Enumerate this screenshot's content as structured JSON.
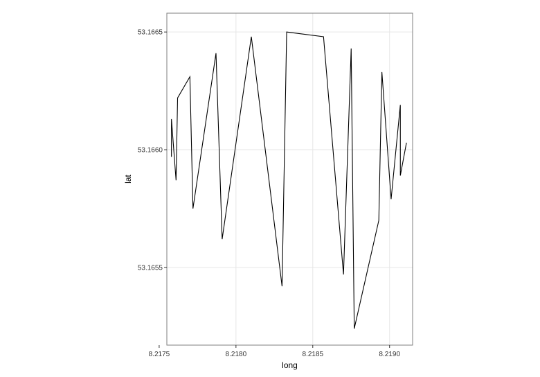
{
  "chart_data": {
    "type": "line",
    "title": "",
    "xlabel": "long",
    "ylabel": "lat",
    "xlim": [
      8.21755,
      8.21915
    ],
    "ylim": [
      53.16517,
      53.16658
    ],
    "grid": true,
    "x_ticks": [
      {
        "value": 8.2175,
        "label": "8.2175"
      },
      {
        "value": 8.218,
        "label": "8.2180"
      },
      {
        "value": 8.2185,
        "label": "8.2185"
      },
      {
        "value": 8.219,
        "label": "8.2190"
      }
    ],
    "y_ticks": [
      {
        "value": 53.1655,
        "label": "53.1655"
      },
      {
        "value": 53.166,
        "label": "53.1660"
      },
      {
        "value": 53.1665,
        "label": "53.1665"
      }
    ],
    "series": [
      {
        "points": [
          {
            "x": 8.21758,
            "y": 53.16597
          },
          {
            "x": 8.21758,
            "y": 53.16613
          },
          {
            "x": 8.21761,
            "y": 53.16587
          },
          {
            "x": 8.21762,
            "y": 53.16622
          },
          {
            "x": 8.2177,
            "y": 53.16631
          },
          {
            "x": 8.21772,
            "y": 53.16575
          },
          {
            "x": 8.21787,
            "y": 53.16641
          },
          {
            "x": 8.21791,
            "y": 53.16562
          },
          {
            "x": 8.2181,
            "y": 53.16648
          },
          {
            "x": 8.2183,
            "y": 53.16542
          },
          {
            "x": 8.21833,
            "y": 53.1665
          },
          {
            "x": 8.21857,
            "y": 53.16648
          },
          {
            "x": 8.2187,
            "y": 53.16547
          },
          {
            "x": 8.21875,
            "y": 53.16643
          },
          {
            "x": 8.21877,
            "y": 53.16524
          },
          {
            "x": 8.21893,
            "y": 53.1657
          },
          {
            "x": 8.21895,
            "y": 53.16633
          },
          {
            "x": 8.21901,
            "y": 53.16579
          },
          {
            "x": 8.21907,
            "y": 53.16619
          },
          {
            "x": 8.21907,
            "y": 53.16589
          },
          {
            "x": 8.21911,
            "y": 53.16603
          }
        ]
      }
    ]
  }
}
